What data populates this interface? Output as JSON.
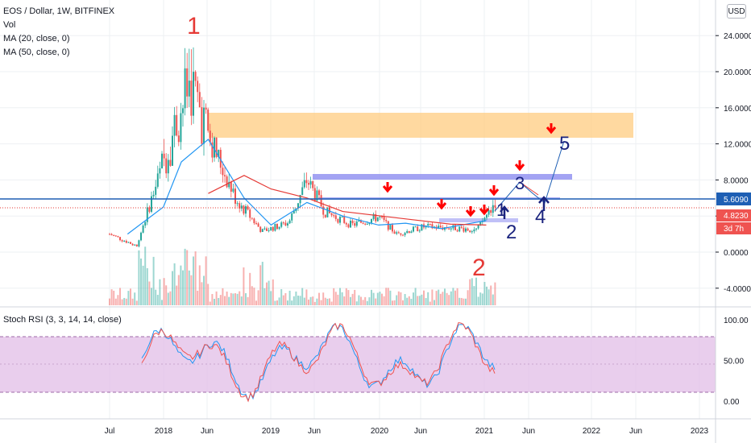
{
  "legend": {
    "symbol": "EOS / Dollar, 1W, BITFINEX",
    "vol": "Vol",
    "ma20": "MA (20, close, 0)",
    "ma50": "MA (50, close, 0)"
  },
  "rsi_legend": "Stoch RSI (3, 3, 14, 14, close)",
  "currency_button": "USD",
  "price_badges": {
    "current": "5.6090",
    "ma": "4.8230",
    "countdown": "3d 7h"
  },
  "annotations": {
    "wave_top_1": "1",
    "wave_bottom_2": "2",
    "wave_labels": [
      "1",
      "2",
      "3",
      "4",
      "5"
    ]
  },
  "colors": {
    "up": "#26a69a",
    "down": "#ef5350",
    "ma20": "#2196f3",
    "ma50": "#e53935",
    "zone_orange": "#ffcc80",
    "zone_blue": "#8c8cf0",
    "current_line": "#1e5fb4",
    "rsi_band": "#e1bee7",
    "arrow_red": "#ff0000",
    "arrow_blue": "#1a237e"
  },
  "chart_data": [
    {
      "type": "candlestick",
      "title": "EOS / Dollar, 1W, BITFINEX",
      "y_axis_ticks": [
        "24.0000",
        "20.0000",
        "16.0000",
        "12.0000",
        "8.0000",
        "4.0000",
        "0.0000",
        "-4.0000"
      ],
      "ylim": [
        -6,
        26
      ],
      "x_axis_ticks": [
        "Jul",
        "2018",
        "Jun",
        "2019",
        "Jun",
        "2020",
        "Jun",
        "2021",
        "Jun",
        "2022",
        "Jun",
        "2023"
      ],
      "series": [
        {
          "name": "MA (20, close, 0)",
          "x": [
            "2017-09",
            "2018-01",
            "2018-03",
            "2018-06",
            "2018-10",
            "2019-01",
            "2019-05",
            "2019-09",
            "2020-01",
            "2020-04",
            "2020-08",
            "2021-01"
          ],
          "values": [
            2,
            5,
            10,
            12.5,
            6,
            3,
            5.5,
            4,
            3,
            3.2,
            2.6,
            3.5
          ]
        },
        {
          "name": "MA (50, close, 0)",
          "x": [
            "2018-06",
            "2018-10",
            "2019-01",
            "2019-05",
            "2019-09",
            "2020-03",
            "2020-09",
            "2021-01"
          ],
          "values": [
            6.5,
            8.5,
            7,
            6,
            4.5,
            3.8,
            3.1,
            3.0
          ]
        }
      ],
      "price_samples": {
        "x": [
          "2017-07",
          "2017-10",
          "2018-01",
          "2018-04",
          "2018-06",
          "2018-09",
          "2018-12",
          "2019-03",
          "2019-05",
          "2019-07",
          "2019-10",
          "2020-01",
          "2020-03",
          "2020-06",
          "2020-09",
          "2020-12",
          "2021-02"
        ],
        "close": [
          2,
          0.7,
          10,
          19,
          13,
          6,
          2.3,
          3.3,
          8,
          4.5,
          3,
          3.9,
          2,
          2.8,
          2.7,
          2.5,
          5.6
        ]
      },
      "zones": [
        {
          "label": "resistance",
          "y_range": [
            12.5,
            15.5
          ],
          "x_range": [
            "2018-06",
            "2021-11"
          ]
        },
        {
          "label": "resistance",
          "y_range": [
            7.6,
            8.4
          ],
          "x_range": [
            "2019-05",
            "2021-11"
          ]
        }
      ],
      "current_price": 5.609,
      "ma_value": 4.823
    },
    {
      "type": "line",
      "title": "Stoch RSI (3, 3, 14, 14, close)",
      "y_axis_ticks": [
        "100.00",
        "50.00",
        "0.00"
      ],
      "ylim": [
        0,
        100
      ],
      "band": [
        20,
        80
      ]
    }
  ]
}
